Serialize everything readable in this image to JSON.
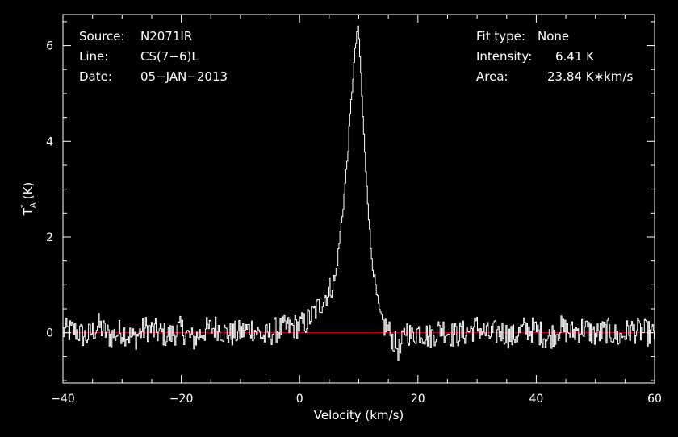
{
  "chart_data": {
    "type": "line",
    "xlabel": "Velocity (km/s)",
    "ylabel": "TA* (K)",
    "ylabel_parts": {
      "base": "T",
      "sub": "A",
      "sup": "*",
      "unit": "(K)"
    },
    "xlim": [
      -40,
      60
    ],
    "ylim": [
      -1.05,
      6.65
    ],
    "xticks": [
      -40,
      -20,
      0,
      20,
      40,
      60
    ],
    "xtick_labels": [
      "−40",
      "−20",
      "0",
      "20",
      "40",
      "60"
    ],
    "yticks": [
      0,
      2,
      4,
      6
    ],
    "ytick_labels": [
      "0",
      "2",
      "4",
      "6"
    ],
    "baseline": 0,
    "grid": false,
    "colors": {
      "background": "#000000",
      "spectrum": "#ffffff",
      "baseline": "#c80000",
      "axes": "#ffffff"
    },
    "annotations": {
      "left": [
        {
          "label": "Source:",
          "value": "N2071IR"
        },
        {
          "label": "Line:",
          "value": "CS(7−6)L"
        },
        {
          "label": "Date:",
          "value": "05−JAN−2013"
        }
      ],
      "right": [
        {
          "label": "Fit type:",
          "value": "None"
        },
        {
          "label": "Intensity:",
          "value": "6.41 K"
        },
        {
          "label": "Area:",
          "value": "23.84 K∗km/s"
        }
      ]
    },
    "series": [
      {
        "x": [
          -40,
          -38,
          -36,
          -34,
          -32,
          -30,
          -28,
          -26,
          -24,
          -22,
          -20,
          -18,
          -16,
          -14,
          -12,
          -10,
          -8,
          -6,
          -4,
          -2,
          0,
          1,
          2,
          3,
          4,
          5,
          6,
          6.5,
          7,
          7.5,
          8,
          8.5,
          9,
          9.5,
          9.8,
          10,
          10.3,
          10.6,
          11,
          11.5,
          12,
          12.5,
          13,
          13.5,
          14,
          15,
          16,
          17,
          18,
          19,
          20,
          22,
          24,
          26,
          28,
          30,
          32,
          34,
          36,
          38,
          40,
          42,
          44,
          46,
          48,
          50,
          52,
          54,
          56,
          58,
          60
        ],
        "values": [
          0.02,
          0.05,
          -0.1,
          0.15,
          -0.08,
          0.04,
          -0.12,
          0.1,
          0.0,
          -0.06,
          0.08,
          -0.15,
          0.05,
          0.12,
          -0.05,
          0.0,
          0.1,
          -0.1,
          0.06,
          0.1,
          0.15,
          0.2,
          0.35,
          0.5,
          0.7,
          0.9,
          1.1,
          1.6,
          2.2,
          2.8,
          3.5,
          4.4,
          5.3,
          6.0,
          6.41,
          6.2,
          5.6,
          4.8,
          3.8,
          2.9,
          1.8,
          1.3,
          0.8,
          0.45,
          0.2,
          0.05,
          -0.2,
          -0.4,
          0.1,
          -0.1,
          0.05,
          -0.08,
          0.1,
          -0.05,
          0.0,
          0.12,
          -0.06,
          0.04,
          -0.1,
          0.08,
          0.05,
          -0.12,
          0.1,
          0.0,
          0.1,
          -0.05,
          0.05,
          -0.1,
          0.06,
          0.02,
          -0.05
        ]
      }
    ]
  }
}
